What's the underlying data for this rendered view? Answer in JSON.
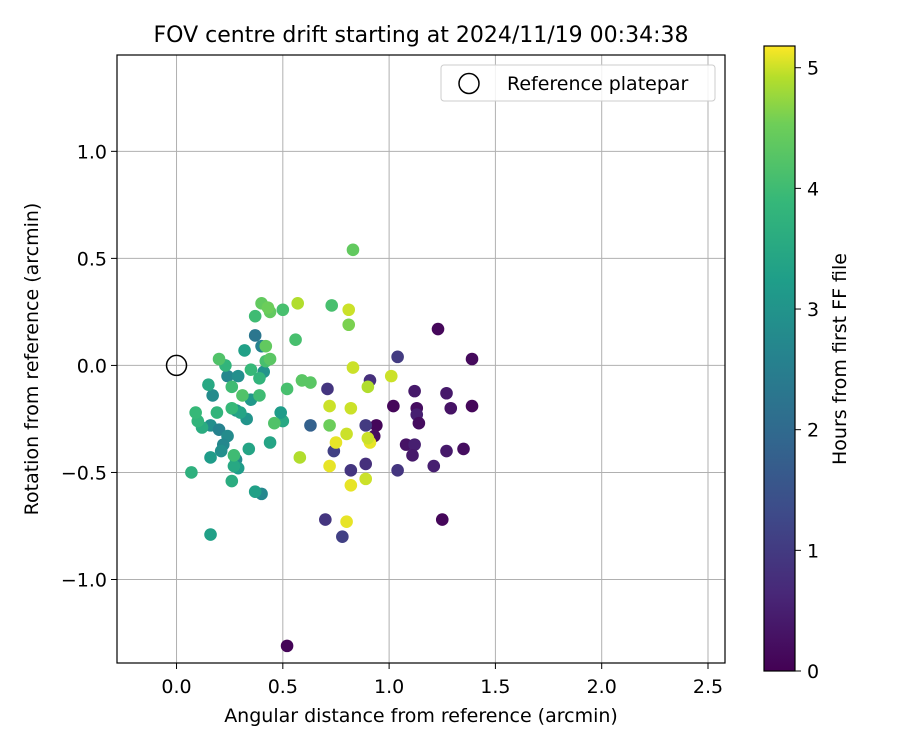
{
  "chart_data": {
    "type": "scatter",
    "title": "FOV centre drift starting at 2024/11/19 00:34:38",
    "xlabel": "Angular distance from reference (arcmin)",
    "ylabel": "Rotation from reference (arcmin)",
    "xlim": [
      -0.28,
      2.58
    ],
    "ylim": [
      -1.39,
      1.45
    ],
    "x_ticks": [
      0.0,
      0.5,
      1.0,
      1.5,
      2.0,
      2.5
    ],
    "x_tick_labels": [
      "0.0",
      "0.5",
      "1.0",
      "1.5",
      "2.0",
      "2.5"
    ],
    "y_ticks": [
      -1.0,
      -0.5,
      0.0,
      0.5,
      1.0
    ],
    "y_tick_labels": [
      "−1.0",
      "−0.5",
      "0.0",
      "0.5",
      "1.0"
    ],
    "grid": true,
    "legend": {
      "placement": "upper right",
      "entries": [
        "Reference platepar"
      ]
    },
    "reference_point": {
      "x": 0.0,
      "y": 0.0,
      "label": "Reference platepar"
    },
    "colorbar": {
      "label": "Hours from first FF file",
      "colormap": "viridis",
      "range": [
        0,
        5.18
      ],
      "ticks": [
        0,
        1,
        2,
        3,
        4,
        5
      ],
      "tick_labels": [
        "0",
        "1",
        "2",
        "3",
        "4",
        "5"
      ]
    },
    "colors": [
      "#440154",
      "#3b528b",
      "#21918c",
      "#5ec962",
      "#fde725"
    ],
    "points": [
      {
        "x": 1.23,
        "y": 0.17,
        "h": 0.1
      },
      {
        "x": 1.39,
        "y": 0.03,
        "h": 0.15
      },
      {
        "x": 1.39,
        "y": -0.19,
        "h": 0.1
      },
      {
        "x": 1.29,
        "y": -0.2,
        "h": 0.3
      },
      {
        "x": 1.27,
        "y": -0.13,
        "h": 0.4
      },
      {
        "x": 1.12,
        "y": -0.12,
        "h": 0.4
      },
      {
        "x": 1.02,
        "y": -0.19,
        "h": 0.1
      },
      {
        "x": 0.94,
        "y": -0.28,
        "h": 0.1
      },
      {
        "x": 1.13,
        "y": -0.2,
        "h": 0.2
      },
      {
        "x": 1.13,
        "y": -0.23,
        "h": 0.5
      },
      {
        "x": 1.14,
        "y": -0.27,
        "h": 0.2
      },
      {
        "x": 1.08,
        "y": -0.37,
        "h": 0.3
      },
      {
        "x": 1.12,
        "y": -0.37,
        "h": 0.5
      },
      {
        "x": 1.11,
        "y": -0.42,
        "h": 0.4
      },
      {
        "x": 1.27,
        "y": -0.4,
        "h": 0.4
      },
      {
        "x": 1.35,
        "y": -0.39,
        "h": 0.2
      },
      {
        "x": 1.21,
        "y": -0.47,
        "h": 0.5
      },
      {
        "x": 1.25,
        "y": -0.72,
        "h": 0.1
      },
      {
        "x": 0.93,
        "y": -0.33,
        "h": 0.2
      },
      {
        "x": 0.52,
        "y": -1.31,
        "h": 0.05
      },
      {
        "x": 1.04,
        "y": 0.04,
        "h": 1.0
      },
      {
        "x": 0.91,
        "y": -0.07,
        "h": 0.8
      },
      {
        "x": 0.71,
        "y": -0.11,
        "h": 0.9
      },
      {
        "x": 0.89,
        "y": -0.28,
        "h": 1.0
      },
      {
        "x": 0.74,
        "y": -0.4,
        "h": 1.1
      },
      {
        "x": 0.82,
        "y": -0.49,
        "h": 0.9
      },
      {
        "x": 0.89,
        "y": -0.46,
        "h": 0.8
      },
      {
        "x": 1.04,
        "y": -0.49,
        "h": 0.9
      },
      {
        "x": 0.7,
        "y": -0.72,
        "h": 0.9
      },
      {
        "x": 0.78,
        "y": -0.8,
        "h": 1.1
      },
      {
        "x": 0.63,
        "y": -0.28,
        "h": 1.8
      },
      {
        "x": 0.37,
        "y": 0.14,
        "h": 2.3
      },
      {
        "x": 0.4,
        "y": 0.09,
        "h": 2.6
      },
      {
        "x": 0.24,
        "y": -0.05,
        "h": 2.7
      },
      {
        "x": 0.29,
        "y": -0.05,
        "h": 2.9
      },
      {
        "x": 0.17,
        "y": -0.14,
        "h": 2.8
      },
      {
        "x": 0.16,
        "y": -0.28,
        "h": 2.9
      },
      {
        "x": 0.2,
        "y": -0.3,
        "h": 2.6
      },
      {
        "x": 0.24,
        "y": -0.33,
        "h": 2.8
      },
      {
        "x": 0.22,
        "y": -0.37,
        "h": 2.7
      },
      {
        "x": 0.21,
        "y": -0.4,
        "h": 2.9
      },
      {
        "x": 0.28,
        "y": -0.44,
        "h": 2.8
      },
      {
        "x": 0.4,
        "y": -0.6,
        "h": 2.7
      },
      {
        "x": 0.33,
        "y": -0.25,
        "h": 3.0
      },
      {
        "x": 0.28,
        "y": -0.21,
        "h": 3.0
      },
      {
        "x": 0.35,
        "y": -0.16,
        "h": 3.1
      },
      {
        "x": 0.41,
        "y": -0.03,
        "h": 3.0
      },
      {
        "x": 0.16,
        "y": -0.43,
        "h": 3.2
      },
      {
        "x": 0.29,
        "y": -0.48,
        "h": 3.2
      },
      {
        "x": 0.37,
        "y": -0.59,
        "h": 3.3
      },
      {
        "x": 0.16,
        "y": -0.79,
        "h": 3.3
      },
      {
        "x": 0.34,
        "y": -0.39,
        "h": 3.4
      },
      {
        "x": 0.44,
        "y": -0.36,
        "h": 3.4
      },
      {
        "x": 0.15,
        "y": -0.09,
        "h": 3.5
      },
      {
        "x": 0.3,
        "y": -0.22,
        "h": 3.4
      },
      {
        "x": 0.32,
        "y": 0.07,
        "h": 3.3
      },
      {
        "x": 0.5,
        "y": -0.26,
        "h": 3.5
      },
      {
        "x": 0.49,
        "y": -0.22,
        "h": 3.2
      },
      {
        "x": 0.26,
        "y": -0.54,
        "h": 3.6
      },
      {
        "x": 0.27,
        "y": -0.47,
        "h": 3.5
      },
      {
        "x": 0.12,
        "y": -0.29,
        "h": 3.6
      },
      {
        "x": 0.07,
        "y": -0.5,
        "h": 3.7
      },
      {
        "x": 0.19,
        "y": -0.22,
        "h": 3.8
      },
      {
        "x": 0.23,
        "y": 0.0,
        "h": 3.8
      },
      {
        "x": 0.35,
        "y": -0.02,
        "h": 3.9
      },
      {
        "x": 0.39,
        "y": -0.06,
        "h": 3.8
      },
      {
        "x": 0.26,
        "y": -0.2,
        "h": 3.9
      },
      {
        "x": 0.1,
        "y": -0.26,
        "h": 3.8
      },
      {
        "x": 0.09,
        "y": -0.22,
        "h": 3.9
      },
      {
        "x": 0.27,
        "y": -0.42,
        "h": 4.0
      },
      {
        "x": 0.26,
        "y": -0.1,
        "h": 4.0
      },
      {
        "x": 0.39,
        "y": -0.14,
        "h": 4.0
      },
      {
        "x": 0.42,
        "y": 0.02,
        "h": 4.1
      },
      {
        "x": 0.37,
        "y": 0.23,
        "h": 4.0
      },
      {
        "x": 0.5,
        "y": 0.26,
        "h": 4.1
      },
      {
        "x": 0.2,
        "y": 0.03,
        "h": 4.2
      },
      {
        "x": 0.31,
        "y": -0.14,
        "h": 4.2
      },
      {
        "x": 0.46,
        "y": -0.27,
        "h": 4.2
      },
      {
        "x": 0.52,
        "y": -0.11,
        "h": 4.1
      },
      {
        "x": 0.56,
        "y": 0.12,
        "h": 4.1
      },
      {
        "x": 0.73,
        "y": 0.28,
        "h": 4.1
      },
      {
        "x": 0.44,
        "y": 0.03,
        "h": 4.3
      },
      {
        "x": 0.42,
        "y": 0.09,
        "h": 4.4
      },
      {
        "x": 0.44,
        "y": 0.25,
        "h": 4.4
      },
      {
        "x": 0.4,
        "y": 0.29,
        "h": 4.4
      },
      {
        "x": 0.43,
        "y": 0.27,
        "h": 4.5
      },
      {
        "x": 0.59,
        "y": -0.07,
        "h": 4.3
      },
      {
        "x": 0.63,
        "y": -0.08,
        "h": 4.3
      },
      {
        "x": 0.83,
        "y": 0.54,
        "h": 4.4
      },
      {
        "x": 0.81,
        "y": 0.19,
        "h": 4.6
      },
      {
        "x": 0.72,
        "y": -0.28,
        "h": 4.5
      },
      {
        "x": 0.57,
        "y": 0.29,
        "h": 4.9
      },
      {
        "x": 0.81,
        "y": 0.26,
        "h": 5.0
      },
      {
        "x": 0.83,
        "y": -0.01,
        "h": 5.0
      },
      {
        "x": 0.58,
        "y": -0.43,
        "h": 4.9
      },
      {
        "x": 0.72,
        "y": -0.19,
        "h": 5.0
      },
      {
        "x": 0.82,
        "y": -0.2,
        "h": 5.0
      },
      {
        "x": 0.9,
        "y": -0.1,
        "h": 4.9
      },
      {
        "x": 1.01,
        "y": -0.05,
        "h": 5.0
      },
      {
        "x": 0.75,
        "y": -0.36,
        "h": 5.1
      },
      {
        "x": 0.8,
        "y": -0.32,
        "h": 5.0
      },
      {
        "x": 0.91,
        "y": -0.36,
        "h": 5.1
      },
      {
        "x": 0.9,
        "y": -0.34,
        "h": 5.0
      },
      {
        "x": 0.72,
        "y": -0.47,
        "h": 5.1
      },
      {
        "x": 0.89,
        "y": -0.53,
        "h": 5.0
      },
      {
        "x": 0.82,
        "y": -0.56,
        "h": 5.1
      },
      {
        "x": 0.8,
        "y": -0.73,
        "h": 5.1
      }
    ]
  }
}
